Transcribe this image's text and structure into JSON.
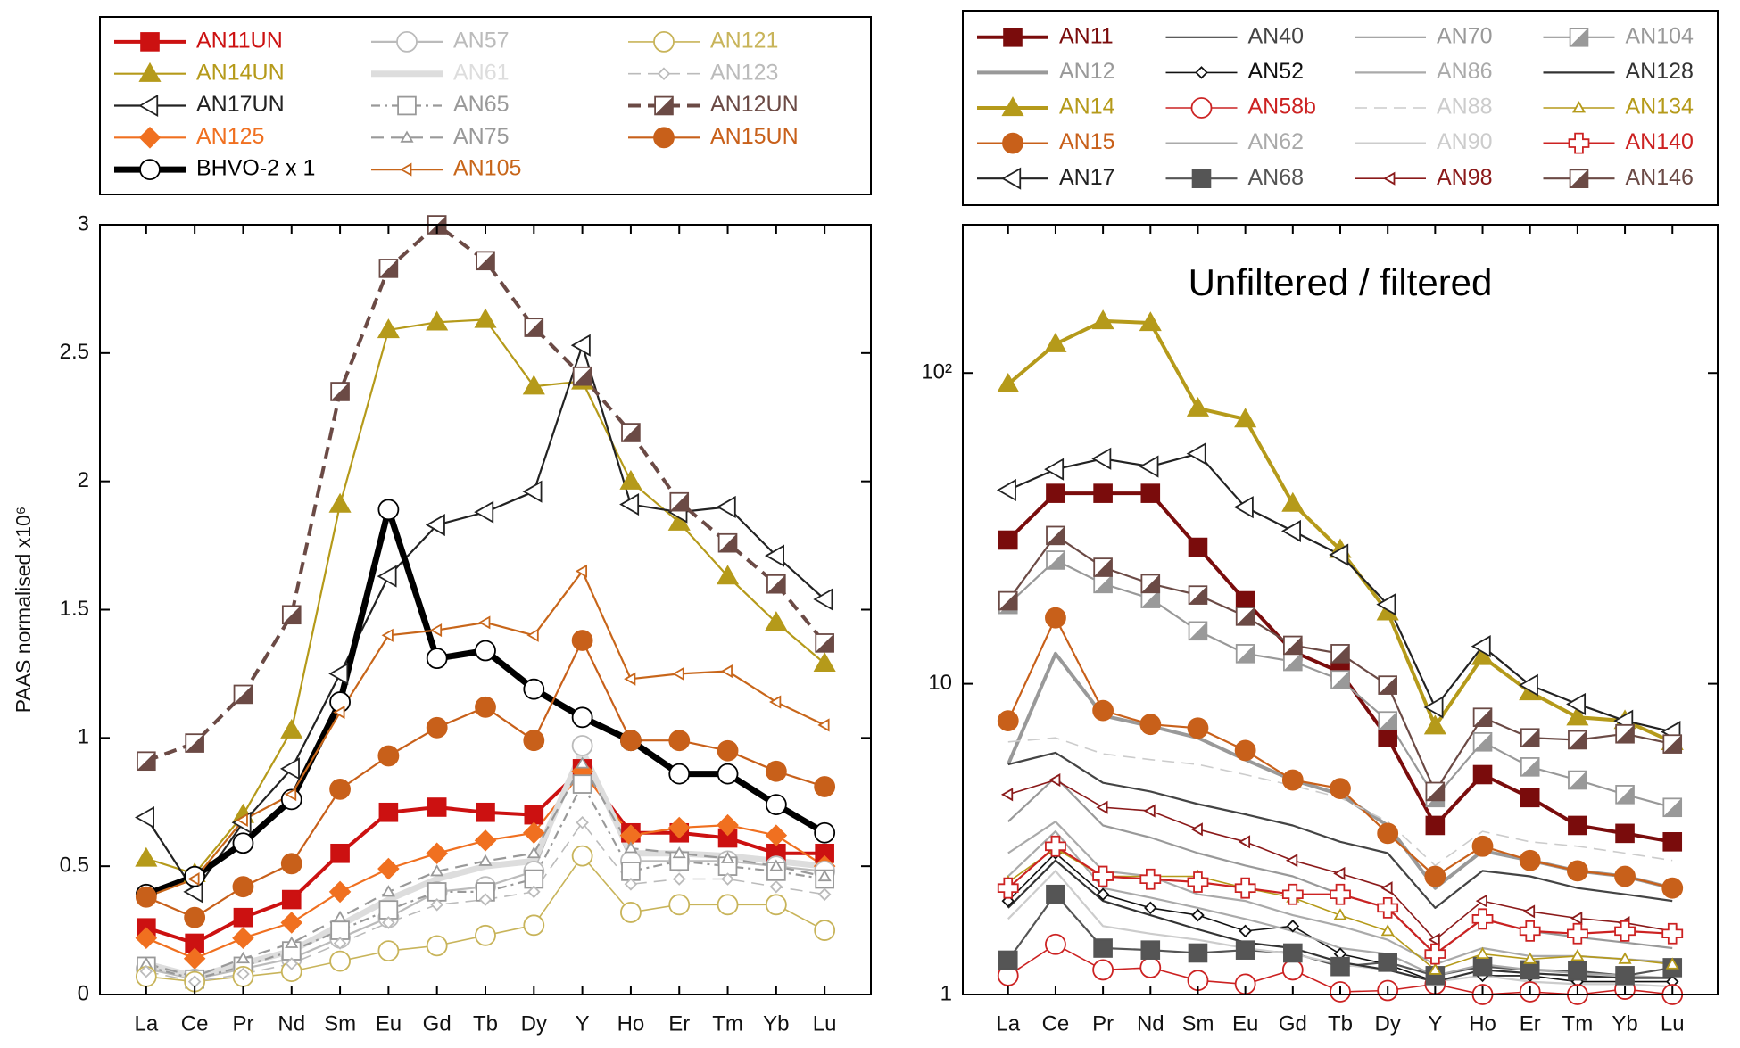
{
  "chart_data": [
    {
      "type": "line",
      "ylabel": "PAAS normalised x10⁶",
      "legend": "above",
      "legend_columns": 3,
      "categories": [
        "La",
        "Ce",
        "Pr",
        "Nd",
        "Sm",
        "Eu",
        "Gd",
        "Tb",
        "Dy",
        "Y",
        "Ho",
        "Er",
        "Tm",
        "Yb",
        "Lu"
      ],
      "ylim": [
        0,
        3
      ],
      "yticks": [
        0,
        0.5,
        1,
        1.5,
        2,
        2.5,
        3
      ],
      "log": false,
      "series": [
        {
          "name": "AN11UN",
          "color": "#cc1111",
          "marker": "square",
          "filled": true,
          "line": "medium",
          "values": [
            0.26,
            0.2,
            0.3,
            0.37,
            0.55,
            0.71,
            0.73,
            0.71,
            0.7,
            0.88,
            0.63,
            0.63,
            0.61,
            0.55,
            0.55
          ]
        },
        {
          "name": "AN14UN",
          "color": "#b59a1a",
          "marker": "triangle",
          "filled": true,
          "line": "normal",
          "values": [
            0.53,
            0.47,
            0.7,
            1.03,
            1.91,
            2.59,
            2.62,
            2.63,
            2.37,
            2.39,
            2.0,
            1.84,
            1.63,
            1.45,
            1.29
          ]
        },
        {
          "name": "AN17UN",
          "color": "#222222",
          "marker": "ltriangle",
          "filled": false,
          "line": "normal",
          "values": [
            0.69,
            0.4,
            0.67,
            0.88,
            1.25,
            1.63,
            1.83,
            1.88,
            1.96,
            2.53,
            1.91,
            1.88,
            1.9,
            1.71,
            1.54
          ]
        },
        {
          "name": "AN125",
          "color": "#f07020",
          "marker": "diamond",
          "filled": true,
          "line": "normal",
          "values": [
            0.22,
            0.14,
            0.22,
            0.28,
            0.4,
            0.49,
            0.55,
            0.6,
            0.63,
            0.87,
            0.62,
            0.65,
            0.66,
            0.62,
            0.5
          ]
        },
        {
          "name": "BHVO-2  x 1",
          "color": "#000000",
          "marker": "circle",
          "filled": false,
          "line": "thick",
          "values": [
            0.39,
            0.46,
            0.59,
            0.76,
            1.14,
            1.89,
            1.31,
            1.34,
            1.19,
            1.08,
            0.99,
            0.86,
            0.86,
            0.74,
            0.63
          ]
        },
        {
          "name": "AN57",
          "color": "#bbbbbb",
          "marker": "circle",
          "filled": false,
          "line": "normal",
          "values": [
            0.1,
            0.06,
            0.1,
            0.14,
            0.22,
            0.3,
            0.4,
            0.42,
            0.48,
            0.97,
            0.52,
            0.52,
            0.52,
            0.5,
            0.48
          ]
        },
        {
          "name": "AN61",
          "color": "#dddddd",
          "line": "thick",
          "values": [
            0.12,
            0.07,
            0.12,
            0.17,
            0.27,
            0.37,
            0.45,
            0.5,
            0.52,
            0.95,
            0.55,
            0.55,
            0.54,
            0.52,
            0.5
          ]
        },
        {
          "name": "AN65",
          "color": "#999999",
          "marker": "square",
          "filled": false,
          "line": "normal",
          "dash": "dashdot",
          "values": [
            0.11,
            0.06,
            0.11,
            0.17,
            0.25,
            0.33,
            0.4,
            0.4,
            0.45,
            0.82,
            0.48,
            0.52,
            0.5,
            0.48,
            0.45
          ]
        },
        {
          "name": "AN75",
          "color": "#999999",
          "marker": "triangle",
          "marker_size": "small",
          "filled": false,
          "line": "normal",
          "dash": "dashed",
          "values": [
            0.12,
            0.07,
            0.14,
            0.2,
            0.3,
            0.4,
            0.48,
            0.52,
            0.55,
            0.9,
            0.57,
            0.55,
            0.53,
            0.5,
            0.46
          ]
        },
        {
          "name": "AN105",
          "color": "#c8661a",
          "marker": "ltriangle",
          "marker_size": "small",
          "filled": false,
          "line": "normal",
          "values": [
            0.38,
            0.45,
            0.68,
            0.78,
            1.1,
            1.4,
            1.42,
            1.45,
            1.4,
            1.65,
            1.23,
            1.25,
            1.26,
            1.14,
            1.05
          ]
        },
        {
          "name": "AN121",
          "color": "#c8b45a",
          "marker": "circle",
          "filled": false,
          "line": "thin",
          "values": [
            0.07,
            0.05,
            0.07,
            0.09,
            0.13,
            0.17,
            0.19,
            0.23,
            0.27,
            0.54,
            0.32,
            0.35,
            0.35,
            0.35,
            0.25
          ]
        },
        {
          "name": "AN123",
          "color": "#bbbbbb",
          "marker": "diamond",
          "marker_size": "small",
          "filled": false,
          "line": "thin",
          "dash": "dashed",
          "values": [
            0.09,
            0.05,
            0.08,
            0.12,
            0.2,
            0.28,
            0.35,
            0.37,
            0.4,
            0.67,
            0.43,
            0.45,
            0.45,
            0.42,
            0.39
          ]
        },
        {
          "name": "AN12UN",
          "color": "#6b4a45",
          "marker": "halfsquare",
          "filled": false,
          "line": "medium",
          "dash": "dashed",
          "values": [
            0.91,
            0.98,
            1.17,
            1.48,
            2.35,
            2.83,
            3.0,
            2.86,
            2.6,
            2.41,
            2.19,
            1.92,
            1.76,
            1.6,
            1.37
          ]
        },
        {
          "name": "AN15UN",
          "color": "#c8601a",
          "marker": "circle",
          "filled": true,
          "line": "normal",
          "values": [
            0.38,
            0.3,
            0.42,
            0.51,
            0.8,
            0.93,
            1.04,
            1.12,
            0.99,
            1.38,
            0.99,
            0.99,
            0.95,
            0.87,
            0.81
          ]
        }
      ]
    },
    {
      "type": "line",
      "title": "Unfiltered / filtered",
      "legend": "above",
      "legend_columns": 4,
      "categories": [
        "La",
        "Ce",
        "Pr",
        "Nd",
        "Sm",
        "Eu",
        "Gd",
        "Tb",
        "Dy",
        "Y",
        "Ho",
        "Er",
        "Tm",
        "Yb",
        "Lu"
      ],
      "ylim": [
        1,
        300
      ],
      "yticks": [
        1,
        10,
        {
          "value": 100,
          "label": "10²"
        }
      ],
      "log": true,
      "series": [
        {
          "name": "AN11",
          "color": "#7a0c0c",
          "marker": "square",
          "filled": true,
          "line": "medium",
          "values": [
            29,
            41,
            41,
            41,
            27.5,
            18.5,
            12.7,
            10.9,
            6.7,
            3.5,
            5.1,
            4.3,
            3.5,
            3.3,
            3.1
          ]
        },
        {
          "name": "AN12",
          "color": "#999999",
          "line": "medium",
          "values": [
            5.5,
            12.5,
            7.9,
            7.3,
            6.7,
            5.7,
            4.9,
            4.4,
            3.5,
            2.2,
            2.9,
            2.7,
            2.5,
            2.4,
            2.2
          ]
        },
        {
          "name": "AN14",
          "color": "#b59a1a",
          "marker": "triangle",
          "filled": true,
          "line": "medium",
          "values": [
            92,
            124,
            147,
            145,
            77,
            71,
            38,
            27,
            17,
            7.3,
            12.2,
            9.4,
            7.8,
            7.6,
            6.5
          ]
        },
        {
          "name": "AN15",
          "color": "#c8601a",
          "marker": "circle",
          "filled": true,
          "line": "normal",
          "values": [
            7.6,
            16.3,
            8.2,
            7.4,
            7.2,
            6.1,
            4.9,
            4.6,
            3.3,
            2.4,
            3.0,
            2.7,
            2.5,
            2.4,
            2.2
          ]
        },
        {
          "name": "AN17",
          "color": "#222222",
          "marker": "ltriangle",
          "filled": false,
          "line": "normal",
          "values": [
            42,
            49,
            53,
            50,
            55,
            37,
            31,
            26,
            18,
            8.4,
            13.2,
            9.9,
            8.6,
            7.6,
            7.0
          ]
        },
        {
          "name": "AN40",
          "color": "#444444",
          "line": "normal",
          "values": [
            5.5,
            6.0,
            4.8,
            4.5,
            4.1,
            3.8,
            3.5,
            3.1,
            2.85,
            1.9,
            2.5,
            2.4,
            2.2,
            2.1,
            2.0
          ]
        },
        {
          "name": "AN52",
          "color": "#111111",
          "marker": "diamond",
          "marker_size": "small",
          "filled": false,
          "line": "thin",
          "values": [
            2.0,
            2.85,
            2.1,
            1.9,
            1.8,
            1.6,
            1.66,
            1.35,
            1.25,
            1.1,
            1.15,
            1.15,
            1.1,
            1.1,
            1.1
          ]
        },
        {
          "name": "AN58b",
          "color": "#cc2222",
          "marker": "circle",
          "filled": false,
          "line": "thin",
          "values": [
            1.15,
            1.45,
            1.2,
            1.22,
            1.11,
            1.08,
            1.2,
            1.02,
            1.03,
            1.08,
            1.0,
            1.02,
            1.0,
            1.04,
            1.0
          ]
        },
        {
          "name": "AN62",
          "color": "#aaaaaa",
          "line": "normal",
          "values": [
            2.85,
            3.6,
            2.5,
            2.4,
            2.1,
            2.0,
            1.8,
            1.66,
            1.5,
            1.25,
            1.41,
            1.33,
            1.33,
            1.3,
            1.27
          ]
        },
        {
          "name": "AN68",
          "color": "#555555",
          "marker": "square",
          "filled": true,
          "line": "normal",
          "values": [
            1.29,
            2.1,
            1.41,
            1.39,
            1.36,
            1.39,
            1.36,
            1.23,
            1.27,
            1.15,
            1.23,
            1.2,
            1.19,
            1.15,
            1.22
          ]
        },
        {
          "name": "AN70",
          "color": "#999999",
          "line": "normal",
          "values": [
            3.6,
            5.0,
            3.5,
            3.2,
            2.85,
            2.6,
            2.4,
            2.1,
            1.9,
            1.35,
            1.75,
            1.6,
            1.53,
            1.47,
            1.41
          ]
        },
        {
          "name": "AN86",
          "color": "#aaaaaa",
          "line": "normal",
          "values": [
            2.4,
            3.35,
            2.2,
            2.05,
            1.9,
            1.75,
            1.6,
            1.41,
            1.35,
            1.15,
            1.25,
            1.2,
            1.17,
            1.15,
            1.13
          ]
        },
        {
          "name": "AN88",
          "color": "#cccccc",
          "line": "thin",
          "dash": "dashed",
          "values": [
            6.5,
            6.7,
            5.95,
            5.7,
            5.5,
            5.1,
            4.7,
            4.3,
            3.6,
            2.6,
            3.35,
            3.1,
            3.0,
            2.85,
            2.7
          ]
        },
        {
          "name": "AN90",
          "color": "#cccccc",
          "line": "normal",
          "values": [
            1.75,
            2.5,
            1.66,
            1.57,
            1.5,
            1.41,
            1.35,
            1.25,
            1.2,
            1.1,
            1.15,
            1.1,
            1.08,
            1.08,
            1.06
          ]
        },
        {
          "name": "AN98",
          "color": "#8b1a1a",
          "marker": "ltriangle",
          "marker_size": "small",
          "filled": false,
          "line": "thin",
          "values": [
            4.4,
            4.9,
            4.0,
            3.9,
            3.4,
            3.1,
            2.7,
            2.45,
            2.2,
            1.5,
            2.0,
            1.85,
            1.76,
            1.7,
            1.6
          ]
        },
        {
          "name": "AN104",
          "color": "#999999",
          "marker": "halfsquare",
          "filled": false,
          "line": "normal",
          "values": [
            18,
            25,
            21,
            18.8,
            14.8,
            12.5,
            11.8,
            10.3,
            7.6,
            4.3,
            6.5,
            5.4,
            4.9,
            4.4,
            4.0
          ]
        },
        {
          "name": "AN128",
          "color": "#333333",
          "line": "normal",
          "values": [
            1.9,
            2.7,
            2.0,
            1.8,
            1.62,
            1.47,
            1.41,
            1.27,
            1.2,
            1.1,
            1.2,
            1.17,
            1.15,
            1.13,
            1.13
          ]
        },
        {
          "name": "AN134",
          "color": "#b59a1a",
          "marker": "triangle",
          "marker_size": "small",
          "filled": false,
          "line": "thin",
          "values": [
            2.3,
            2.95,
            2.4,
            2.4,
            2.4,
            2.2,
            2.05,
            1.8,
            1.6,
            1.2,
            1.35,
            1.3,
            1.33,
            1.3,
            1.25
          ]
        },
        {
          "name": "AN140",
          "color": "#cc2222",
          "marker": "cross",
          "filled": false,
          "line": "normal",
          "values": [
            2.2,
            3.0,
            2.4,
            2.35,
            2.3,
            2.2,
            2.1,
            2.1,
            1.9,
            1.35,
            1.75,
            1.6,
            1.57,
            1.6,
            1.57
          ]
        },
        {
          "name": "AN146",
          "color": "#6b4a45",
          "marker": "halfsquare",
          "filled": false,
          "line": "normal",
          "values": [
            18.5,
            30,
            23.7,
            21,
            19.3,
            16.5,
            13.3,
            12.5,
            9.9,
            4.5,
            7.8,
            6.7,
            6.6,
            6.9,
            6.4
          ]
        }
      ]
    }
  ]
}
